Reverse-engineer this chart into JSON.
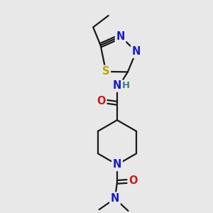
{
  "bg_color": "#e8e8e8",
  "bond_color": "#1a1a1a",
  "bond_width": 1.6,
  "atom_colors": {
    "C": "#1a1a1a",
    "N": "#1a1acc",
    "O": "#cc1a1a",
    "S": "#b8a800",
    "H": "#408080"
  },
  "font_size": 9.5,
  "fig_size": [
    3.0,
    3.0
  ],
  "dpi": 100,
  "xlim": [
    0,
    10
  ],
  "ylim": [
    0,
    10
  ]
}
